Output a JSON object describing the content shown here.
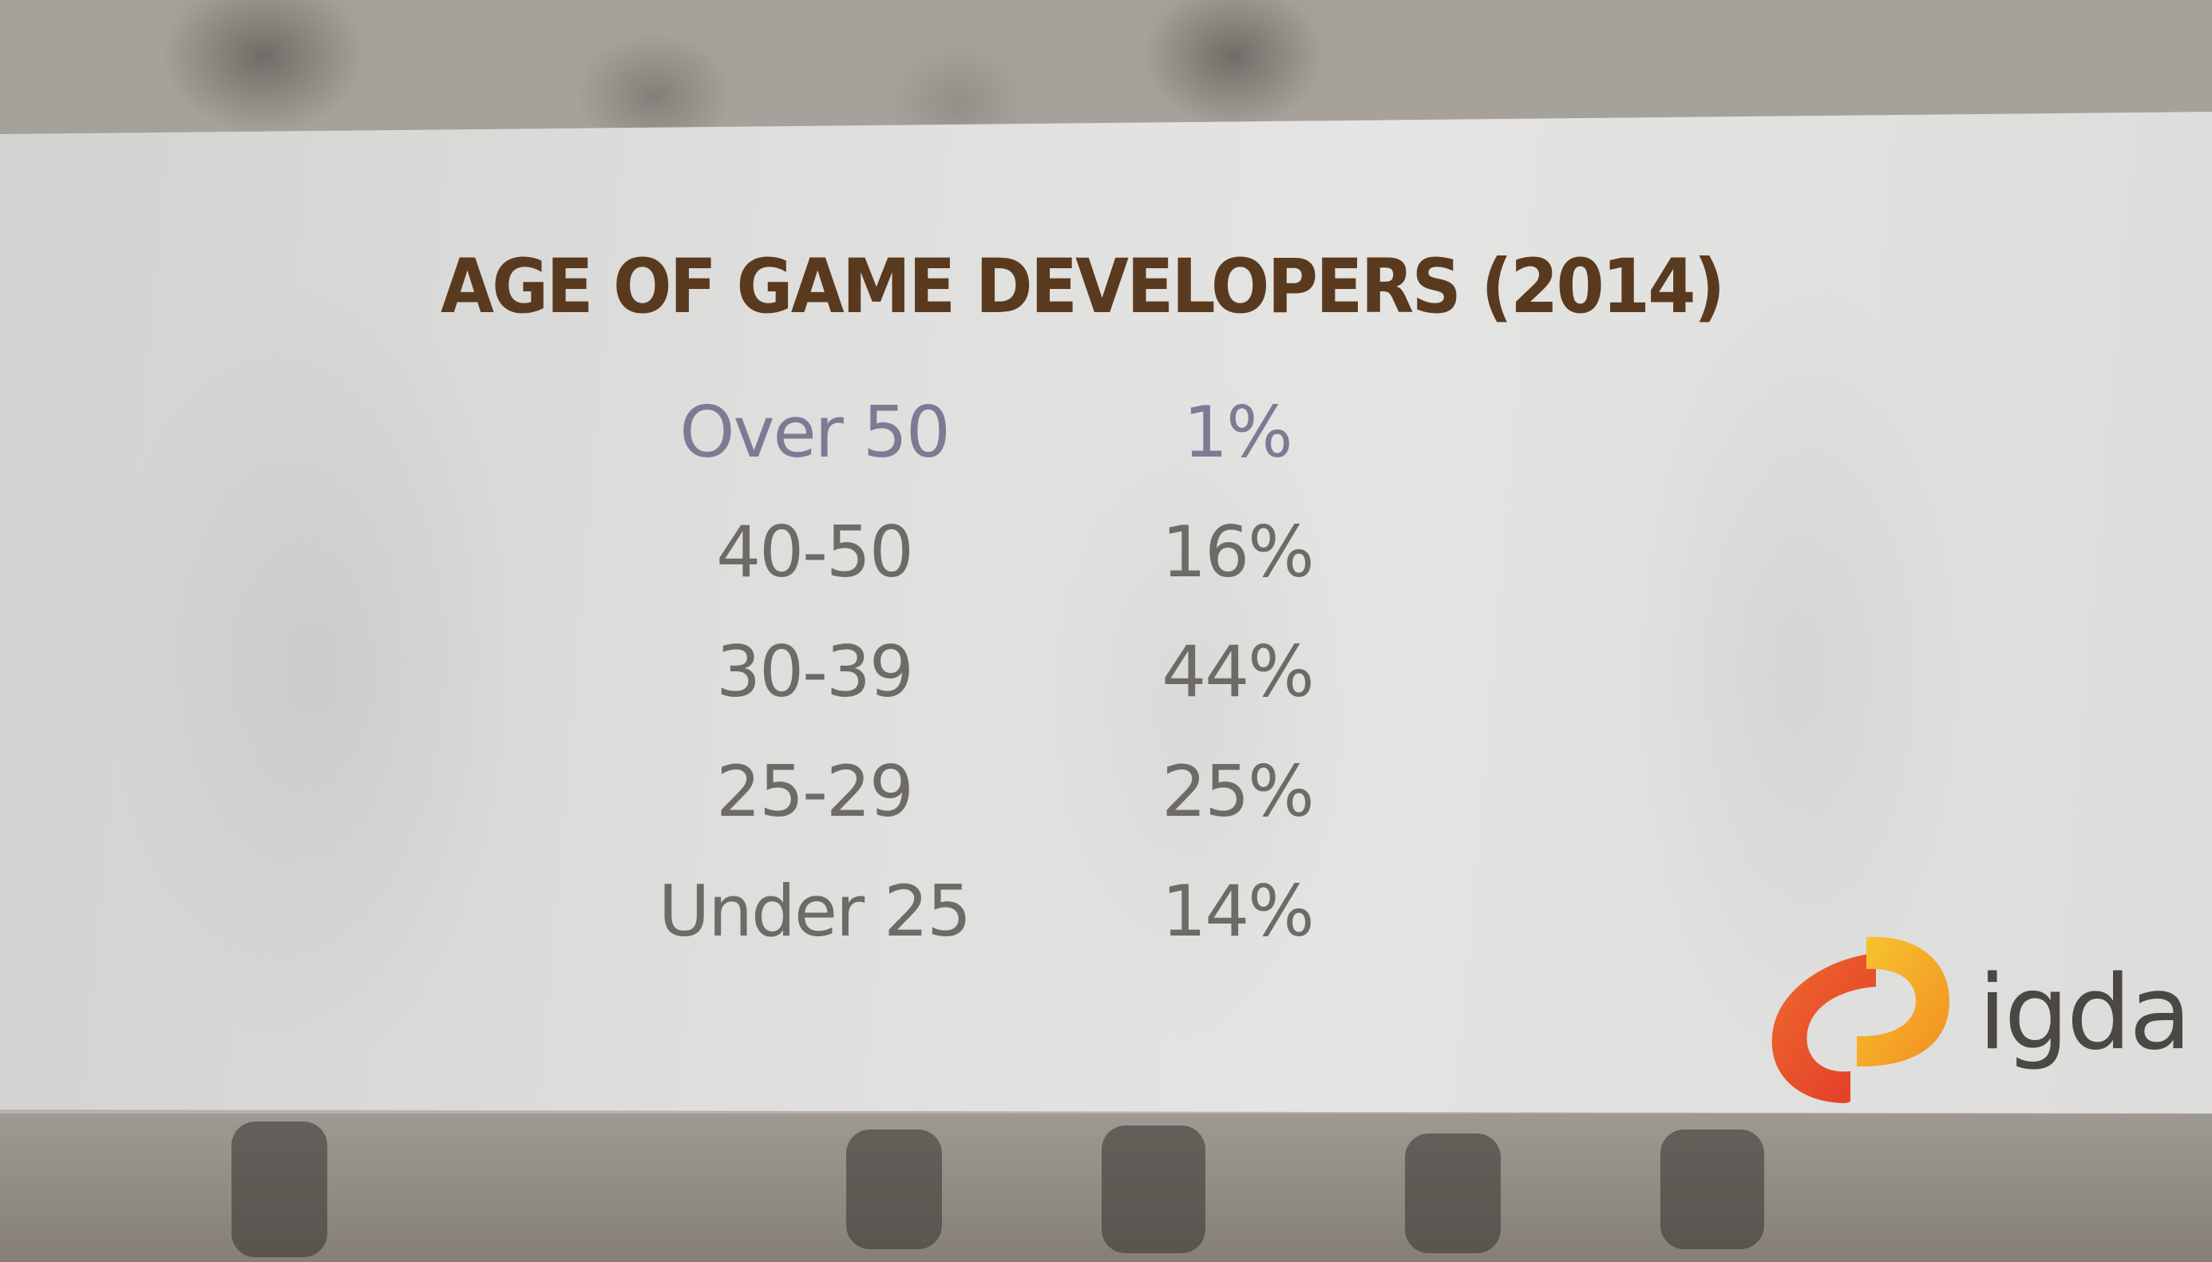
{
  "slide": {
    "title": "AGE OF GAME DEVELOPERS (2014)",
    "rows": [
      {
        "age": "Over 50",
        "percent": "1%"
      },
      {
        "age": "40-50",
        "percent": "16%"
      },
      {
        "age": "30-39",
        "percent": "44%"
      },
      {
        "age": "25-29",
        "percent": "25%"
      },
      {
        "age": "Under 25",
        "percent": "14%"
      }
    ],
    "logo": {
      "text": "igda",
      "colors": {
        "orange_red": "#e8502a",
        "yellow": "#f5b52a",
        "text": "#4a4744"
      }
    },
    "title_color": "#5a3a1f"
  }
}
